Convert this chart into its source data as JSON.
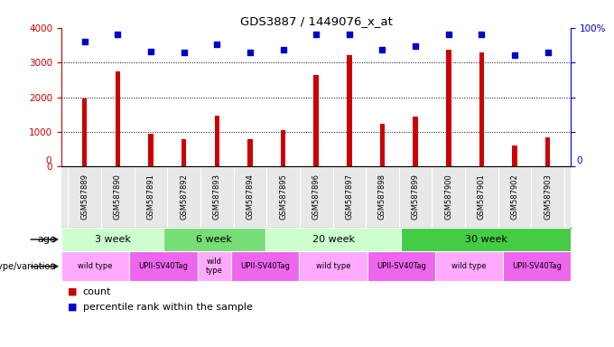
{
  "title": "GDS3887 / 1449076_x_at",
  "samples": [
    "GSM587889",
    "GSM587890",
    "GSM587891",
    "GSM587892",
    "GSM587893",
    "GSM587894",
    "GSM587895",
    "GSM587896",
    "GSM587897",
    "GSM587898",
    "GSM587899",
    "GSM587900",
    "GSM587901",
    "GSM587902",
    "GSM587903"
  ],
  "counts": [
    1950,
    2730,
    950,
    790,
    1470,
    800,
    1050,
    2630,
    3200,
    1220,
    1440,
    3380,
    3290,
    620,
    840
  ],
  "percentiles": [
    90,
    95,
    83,
    82,
    88,
    82,
    84,
    95,
    95,
    84,
    87,
    95,
    95,
    80,
    82
  ],
  "bar_color": "#cc0000",
  "dot_color": "#0000cc",
  "ylim_left": [
    0,
    4000
  ],
  "ylim_right": [
    0,
    100
  ],
  "yticks_left": [
    0,
    1000,
    2000,
    3000,
    4000
  ],
  "yticks_right": [
    0,
    25,
    50,
    75,
    100
  ],
  "age_groups": [
    {
      "label": "3 week",
      "start": 0,
      "end": 3,
      "color": "#ccffcc"
    },
    {
      "label": "6 week",
      "start": 3,
      "end": 6,
      "color": "#77dd77"
    },
    {
      "label": "20 week",
      "start": 6,
      "end": 10,
      "color": "#ccffcc"
    },
    {
      "label": "30 week",
      "start": 10,
      "end": 15,
      "color": "#44cc44"
    }
  ],
  "genotype_groups": [
    {
      "label": "wild type",
      "start": 0,
      "end": 2,
      "color": "#ffaaff"
    },
    {
      "label": "UPII-SV40Tag",
      "start": 2,
      "end": 4,
      "color": "#ee66ee"
    },
    {
      "label": "wild\ntype",
      "start": 4,
      "end": 5,
      "color": "#ffaaff"
    },
    {
      "label": "UPII-SV40Tag",
      "start": 5,
      "end": 7,
      "color": "#ee66ee"
    },
    {
      "label": "wild type",
      "start": 7,
      "end": 9,
      "color": "#ffaaff"
    },
    {
      "label": "UPII-SV40Tag",
      "start": 9,
      "end": 11,
      "color": "#ee66ee"
    },
    {
      "label": "wild type",
      "start": 11,
      "end": 13,
      "color": "#ffaaff"
    },
    {
      "label": "UPII-SV40Tag",
      "start": 13,
      "end": 15,
      "color": "#ee66ee"
    }
  ],
  "tick_color_left": "#cc0000",
  "tick_color_right": "#0000cc",
  "legend_count_color": "#cc0000",
  "legend_dot_color": "#0000cc",
  "bg_color": "#ffffff"
}
